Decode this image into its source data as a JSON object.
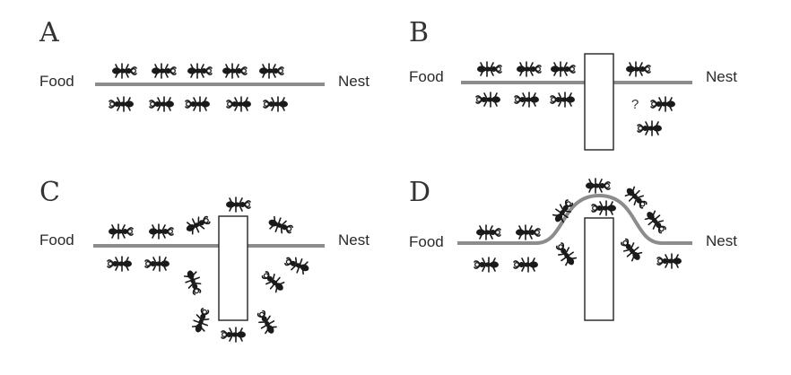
{
  "figure": {
    "description_free": true,
    "panels": [
      {
        "id": "A",
        "label": "A",
        "left_label": "Food",
        "right_label": "Nest",
        "obstacle": false,
        "path_bends": false,
        "question_mark": ""
      },
      {
        "id": "B",
        "label": "B",
        "left_label": "Food",
        "right_label": "Nest",
        "obstacle": true,
        "path_bends": false,
        "question_mark": "?"
      },
      {
        "id": "C",
        "label": "C",
        "left_label": "Food",
        "right_label": "Nest",
        "obstacle": true,
        "path_bends": false,
        "question_mark": ""
      },
      {
        "id": "D",
        "label": "D",
        "left_label": "Food",
        "right_label": "Nest",
        "obstacle": true,
        "path_bends": true,
        "question_mark": ""
      }
    ]
  },
  "colors": {
    "trail": "#8c8c8c",
    "ant": "#1a1a1a",
    "obstacle_stroke": "#222222",
    "obstacle_fill": "#ffffff"
  }
}
